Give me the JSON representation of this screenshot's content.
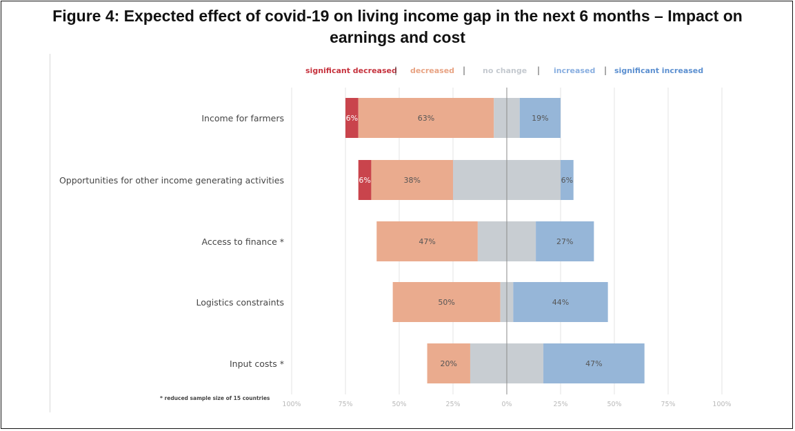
{
  "title_line1": "Figure 4: Expected effect of covid-19 on living income gap in the next 6 months – Impact on",
  "title_line2": "earnings and cost",
  "note": "* reduced sample size of 15 countries",
  "colors": {
    "significant_decreased": "#c9444c",
    "decreased": "#eaab8e",
    "no_change": "#c8cdd2",
    "increased": "#96b6d8",
    "significant_increased": "#96b6d8",
    "legend_sig_inc_text": "#5b8fd0",
    "legend_inc_text": "#88aee0",
    "legend_nochange_text": "#c4c9cf",
    "legend_dec_text": "#e8a383",
    "legend_sigdec_text": "#c6323d"
  },
  "legend": [
    {
      "key": "significant_decreased",
      "label": "significant decreased"
    },
    {
      "key": "decreased",
      "label": "decreased"
    },
    {
      "key": "no_change",
      "label": "no change"
    },
    {
      "key": "increased",
      "label": "increased"
    },
    {
      "key": "significant_increased",
      "label": "significant increased"
    }
  ],
  "legend_separator": "|",
  "chart_data": {
    "type": "bar",
    "orientation": "horizontal",
    "stacked": true,
    "diverging": true,
    "categories": [
      "Income for farmers",
      "Opportunities for other income generating activities",
      "Access to finance *",
      "Logistics constraints",
      "Input costs *"
    ],
    "series": [
      {
        "name": "significant decreased",
        "values": [
          6,
          6,
          0,
          0,
          0
        ]
      },
      {
        "name": "decreased",
        "values": [
          63,
          38,
          47,
          50,
          20
        ]
      },
      {
        "name": "no change",
        "values": [
          12,
          50,
          27,
          6,
          34
        ]
      },
      {
        "name": "increased",
        "values": [
          19,
          6,
          27,
          44,
          47
        ]
      },
      {
        "name": "significant increased",
        "values": [
          0,
          0,
          0,
          0,
          0
        ]
      }
    ],
    "data_labels": [
      [
        "6%",
        "63%",
        "",
        "19%"
      ],
      [
        "6%",
        "38%",
        "",
        "6%"
      ],
      [
        "",
        "47%",
        "",
        "27%"
      ],
      [
        "",
        "50%",
        "",
        "44%"
      ],
      [
        "",
        "20%",
        "",
        "47%"
      ]
    ],
    "x_ticks": [
      "100%",
      "75%",
      "50%",
      "25%",
      "0%",
      "25%",
      "50%",
      "75%",
      "100%"
    ],
    "xlim": [
      -100,
      100
    ],
    "grid": true
  }
}
